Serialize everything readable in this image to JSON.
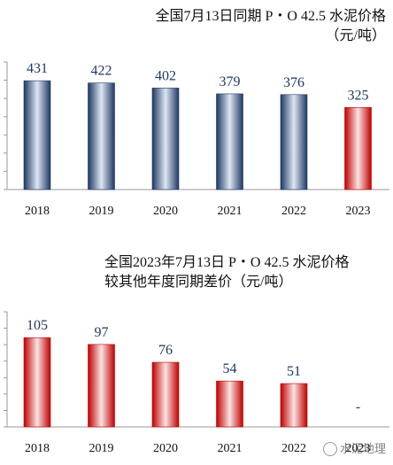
{
  "chart_data": [
    {
      "type": "bar",
      "title": "全国7月13日同期 P・O 42.5 水泥价格",
      "subtitle": "（元/吨）",
      "categories": [
        "2018",
        "2019",
        "2020",
        "2021",
        "2022",
        "2023"
      ],
      "values": [
        431,
        422,
        402,
        379,
        376,
        325
      ],
      "ylim": [
        0,
        470
      ],
      "bar_colors": [
        "navy-gradient",
        "navy-gradient",
        "navy-gradient",
        "navy-gradient",
        "navy-gradient",
        "red-gradient"
      ],
      "grid": false
    },
    {
      "type": "bar",
      "title": "全国2023年7月13日 P・O 42.5 水泥价格",
      "subtitle": "较其他年度同期差价（元/吨）",
      "categories": [
        "2018",
        "2019",
        "2020",
        "2021",
        "2022",
        "2023"
      ],
      "values": [
        105,
        97,
        76,
        54,
        51,
        null
      ],
      "value_labels": [
        "105",
        "97",
        "76",
        "54",
        "51",
        "-"
      ],
      "ylim": [
        0,
        125
      ],
      "bar_colors": [
        "red-gradient",
        "red-gradient",
        "red-gradient",
        "red-gradient",
        "red-gradient",
        "red-gradient"
      ],
      "grid": false
    }
  ],
  "colors": {
    "navy_dark": "#1f3864",
    "navy_light": "#dde6f2",
    "red_dark": "#c00000",
    "red_light": "#fbe3e3",
    "label_color": "#1f3864"
  },
  "watermark": "水泥地理"
}
